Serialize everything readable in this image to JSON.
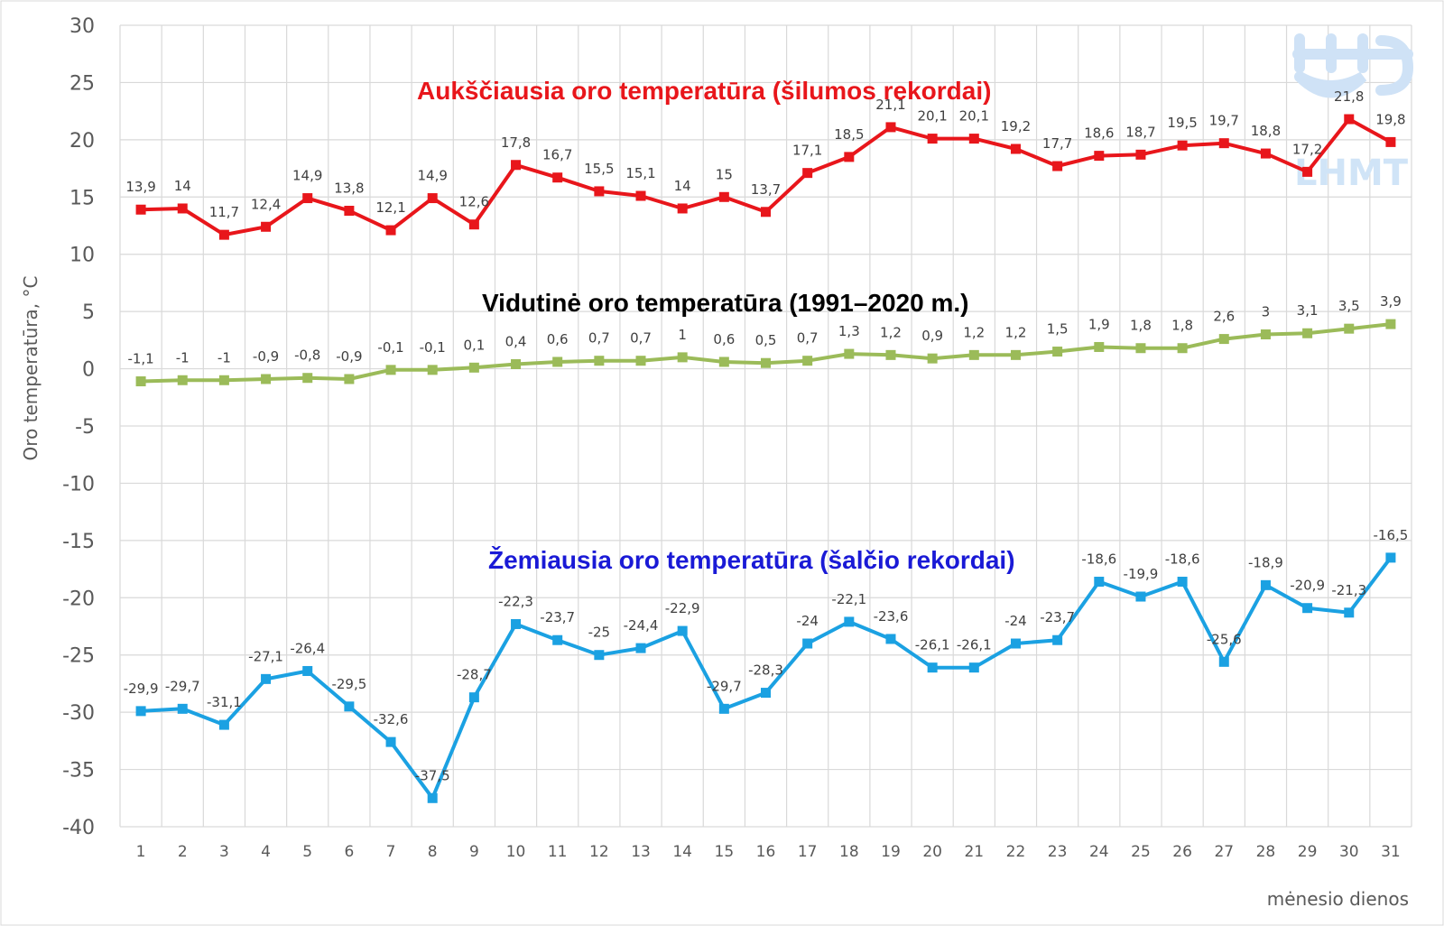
{
  "chart_data": {
    "type": "line",
    "ylabel": "Oro temperatūra, °C",
    "xlabel": "mėnesio dienos",
    "ylim": [
      -40,
      30
    ],
    "yticks": [
      30,
      25,
      20,
      15,
      10,
      5,
      0,
      -5,
      -10,
      -15,
      -20,
      -25,
      -30,
      -35,
      -40
    ],
    "grid": true,
    "categories": [
      "1",
      "2",
      "3",
      "4",
      "5",
      "6",
      "7",
      "8",
      "9",
      "10",
      "11",
      "12",
      "13",
      "14",
      "15",
      "16",
      "17",
      "18",
      "19",
      "20",
      "21",
      "22",
      "23",
      "24",
      "25",
      "26",
      "27",
      "28",
      "29",
      "30",
      "31"
    ],
    "series": [
      {
        "name": "Aukščiausia oro temperatūra (šilumos rekordai)",
        "color": "#e8161b",
        "values": [
          13.9,
          14,
          11.7,
          12.4,
          14.9,
          13.8,
          12.1,
          14.9,
          12.6,
          17.8,
          16.7,
          15.5,
          15.1,
          14,
          15,
          13.7,
          17.1,
          18.5,
          21.1,
          20.1,
          20.1,
          19.2,
          17.7,
          18.6,
          18.7,
          19.5,
          19.7,
          18.8,
          17.2,
          21.8,
          19.8
        ],
        "labels": [
          "13,9",
          "14",
          "11,7",
          "12,4",
          "14,9",
          "13,8",
          "12,1",
          "14,9",
          "12,6",
          "17,8",
          "16,7",
          "15,5",
          "15,1",
          "14",
          "15",
          "13,7",
          "17,1",
          "18,5",
          "21,1",
          "20,1",
          "20,1",
          "19,2",
          "17,7",
          "18,6",
          "18,7",
          "19,5",
          "19,7",
          "18,8",
          "17,2",
          "21,8",
          "19,8"
        ]
      },
      {
        "name": "Vidutinė oro temperatūra (1991–2020 m.)",
        "color": "#9bbb59",
        "values": [
          -1.1,
          -1,
          -1,
          -0.9,
          -0.8,
          -0.9,
          -0.1,
          -0.1,
          0.1,
          0.4,
          0.6,
          0.7,
          0.7,
          1,
          0.6,
          0.5,
          0.7,
          1.3,
          1.2,
          0.9,
          1.2,
          1.2,
          1.5,
          1.9,
          1.8,
          1.8,
          2.6,
          3,
          3.1,
          3.5,
          3.9
        ],
        "labels": [
          "-1,1",
          "-1",
          "-1",
          "-0,9",
          "-0,8",
          "-0,9",
          "-0,1",
          "-0,1",
          "0,1",
          "0,4",
          "0,6",
          "0,7",
          "0,7",
          "1",
          "0,6",
          "0,5",
          "0,7",
          "1,3",
          "1,2",
          "0,9",
          "1,2",
          "1,2",
          "1,5",
          "1,9",
          "1,8",
          "1,8",
          "2,6",
          "3",
          "3,1",
          "3,5",
          "3,9"
        ]
      },
      {
        "name": "Žemiausia oro temperatūra (šalčio rekordai)",
        "color": "#1ba1e2",
        "values": [
          -29.9,
          -29.7,
          -31.1,
          -27.1,
          -26.4,
          -29.5,
          -32.6,
          -37.5,
          -28.7,
          -22.3,
          -23.7,
          -25,
          -24.4,
          -22.9,
          -29.7,
          -28.3,
          -24,
          -22.1,
          -23.6,
          -26.1,
          -26.1,
          -24,
          -23.7,
          -18.6,
          -19.9,
          -18.6,
          -25.6,
          -18.9,
          -20.9,
          -21.3,
          -16.5
        ],
        "labels": [
          "-29,9",
          "-29,7",
          "-31,1",
          "-27,1",
          "-26,4",
          "-29,5",
          "-32,6",
          "-37,5",
          "-28,7",
          "-22,3",
          "-23,7",
          "-25",
          "-24,4",
          "-22,9",
          "-29,7",
          "-28,3",
          "-24",
          "-22,1",
          "-23,6",
          "-26,1",
          "-26,1",
          "-24",
          "-23,7",
          "-18,6",
          "-19,9",
          "-18,6",
          "-25,6",
          "-18,9",
          "-20,9",
          "-21,3",
          "-16,5"
        ]
      }
    ]
  },
  "logo": {
    "text": "LHMT",
    "color": "#c9dff5"
  },
  "series_titles": [
    {
      "text": "Aukščiausia oro temperatūra (šilumos rekordai)",
      "color": "#e8161b"
    },
    {
      "text": "Vidutinė oro temperatūra (1991–2020 m.)",
      "color": "#000000"
    },
    {
      "text": "Žemiausia oro temperatūra (šalčio rekordai)",
      "color": "#1a1ad6"
    }
  ]
}
